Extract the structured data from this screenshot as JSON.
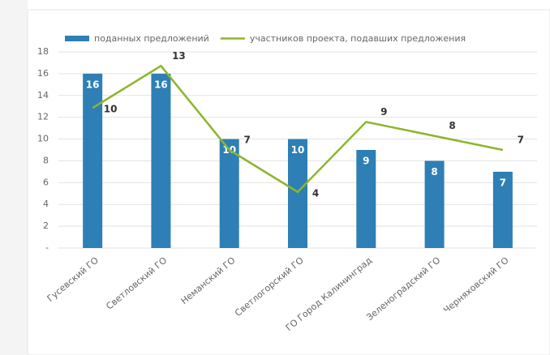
{
  "chart_data": {
    "type": "bar-line",
    "categories": [
      "Гусевский ГО",
      "Светловский ГО",
      "Неманский ГО",
      "Светлогорский ГО",
      "ГО Город Калининград",
      "Зеленоградский ГО",
      "Черняховский ГО"
    ],
    "series": [
      {
        "name": "поданных предложений",
        "color": "#2e7fb5",
        "type": "bar",
        "values": [
          16,
          16,
          10,
          10,
          9,
          8,
          7
        ]
      },
      {
        "name": "участников проекта, подавших предложения",
        "color": "#8db52a",
        "type": "line",
        "axis": "y2",
        "values": [
          10,
          13,
          7,
          4,
          9,
          8,
          7
        ]
      }
    ],
    "ylim": [
      0,
      18
    ],
    "yticks": [
      {
        "value": 0,
        "label": "-"
      },
      2,
      4,
      6,
      8,
      10,
      12,
      14,
      16,
      18
    ],
    "y2lim": [
      0,
      14
    ],
    "grid": true,
    "legend": "top"
  }
}
